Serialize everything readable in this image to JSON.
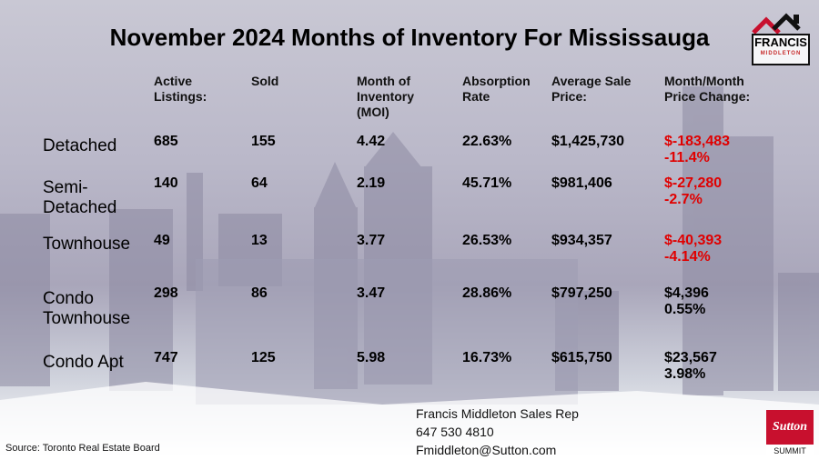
{
  "title": "November 2024 Months of Inventory For Mississauga",
  "headers": {
    "active": [
      "Active",
      "Listings:"
    ],
    "sold": [
      "Sold"
    ],
    "moi": [
      "Month of",
      "Inventory",
      "(MOI)"
    ],
    "absorption": [
      "Absorption",
      "Rate"
    ],
    "avg_price": [
      "Average Sale",
      "Price:"
    ],
    "mom_change": [
      "Month/Month",
      "Price Change:"
    ]
  },
  "rows": [
    {
      "label": [
        "Detached"
      ],
      "active": "685",
      "sold": "155",
      "moi": "4.42",
      "absorption": "22.63%",
      "avg_price": "$1,425,730",
      "change": "$-183,483",
      "change_pct": "-11.4%",
      "negative": true
    },
    {
      "label": [
        "Semi-",
        "Detached"
      ],
      "active": "140",
      "sold": "64",
      "moi": "2.19",
      "absorption": "45.71%",
      "avg_price": "$981,406",
      "change": "$-27,280",
      "change_pct": "-2.7%",
      "negative": true
    },
    {
      "label": [
        "Townhouse"
      ],
      "active": "49",
      "sold": "13",
      "moi": "3.77",
      "absorption": "26.53%",
      "avg_price": "$934,357",
      "change": "$-40,393",
      "change_pct": "-4.14%",
      "negative": true
    },
    {
      "label": [
        "Condo",
        "Townhouse"
      ],
      "active": "298",
      "sold": "86",
      "moi": "3.47",
      "absorption": "28.86%",
      "avg_price": "$797,250",
      "change": "$4,396",
      "change_pct": "0.55%",
      "negative": false
    },
    {
      "label": [
        "Condo Apt"
      ],
      "active": "747",
      "sold": "125",
      "moi": "5.98",
      "absorption": "16.73%",
      "avg_price": "$615,750",
      "change": "$23,567",
      "change_pct": "3.98%",
      "negative": false
    }
  ],
  "contact": {
    "name": "Francis Middleton Sales Rep",
    "phone": "647 530 4810",
    "email": "Fmiddleton@Sutton.com"
  },
  "source": "Source: Toronto Real Estate Board",
  "logo": {
    "name": "FRANCIS",
    "sub": "MIDDLETON"
  },
  "brokerage": {
    "name": "Sutton",
    "sub": "SUMMIT"
  },
  "colors": {
    "negative": "#e00000",
    "logo_red": "#c8102e"
  }
}
